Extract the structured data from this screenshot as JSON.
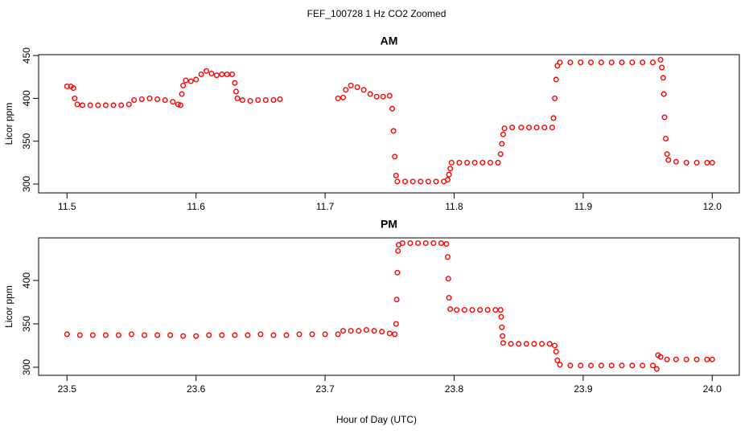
{
  "title": "FEF_100728  1 Hz CO2 Zoomed",
  "xlabel": "Hour of Day (UTC)",
  "chart_data": [
    {
      "type": "scatter",
      "title": "AM",
      "ylabel": "Licor ppm",
      "color": "#ff0000",
      "xlim": [
        11.478,
        12.021
      ],
      "ylim": [
        289.7,
        451
      ],
      "xticks": [
        11.5,
        11.6,
        11.7,
        11.8,
        11.9,
        {
          "value": 12,
          "label": "12.0"
        }
      ],
      "yticks": [
        300,
        350,
        400,
        450
      ],
      "x": [
        11.5,
        11.503,
        11.505,
        11.506,
        11.508,
        11.512,
        11.518,
        11.524,
        11.53,
        11.536,
        11.542,
        11.548,
        11.552,
        11.558,
        11.564,
        11.57,
        11.576,
        11.582,
        11.586,
        11.588,
        11.589,
        11.59,
        11.592,
        11.596,
        11.6,
        11.604,
        11.608,
        11.612,
        11.616,
        11.62,
        11.624,
        11.628,
        11.63,
        11.631,
        11.632,
        11.636,
        11.642,
        11.648,
        11.654,
        11.66,
        11.665,
        11.71,
        11.714,
        11.716,
        11.72,
        11.725,
        11.73,
        11.735,
        11.74,
        11.745,
        11.75,
        11.752,
        11.753,
        11.754,
        11.755,
        11.756,
        11.762,
        11.768,
        11.774,
        11.78,
        11.786,
        11.792,
        11.795,
        11.796,
        11.797,
        11.798,
        11.804,
        11.81,
        11.816,
        11.822,
        11.828,
        11.834,
        11.836,
        11.837,
        11.838,
        11.839,
        11.845,
        11.852,
        11.858,
        11.864,
        11.87,
        11.876,
        11.877,
        11.878,
        11.879,
        11.88,
        11.882,
        11.89,
        11.898,
        11.906,
        11.914,
        11.922,
        11.93,
        11.938,
        11.946,
        11.954,
        11.96,
        11.961,
        11.962,
        11.9625,
        11.963,
        11.964,
        11.965,
        11.966,
        11.972,
        11.98,
        11.988,
        11.996,
        12.0
      ],
      "values": [
        414,
        414,
        412,
        400,
        393,
        392,
        392,
        392,
        392,
        392,
        392,
        393,
        398,
        399,
        400,
        399,
        398,
        396,
        393,
        392,
        405,
        415,
        421,
        420,
        422,
        428,
        432,
        429,
        427,
        428,
        428,
        428,
        418,
        408,
        400,
        398,
        397,
        398,
        398,
        398,
        399,
        400,
        401,
        410,
        415,
        413,
        410,
        405,
        402,
        402,
        403,
        388,
        362,
        332,
        310,
        303,
        303,
        303,
        303,
        303,
        303,
        303,
        305,
        311,
        318,
        325,
        325,
        325,
        325,
        325,
        325,
        325,
        335,
        347,
        358,
        365,
        366,
        366,
        366,
        366,
        366,
        366,
        377,
        400,
        422,
        438,
        442,
        442,
        442,
        442,
        442,
        442,
        442,
        442,
        442,
        442,
        445,
        436,
        424,
        405,
        378,
        353,
        335,
        328,
        326,
        325,
        325,
        325,
        325
      ]
    },
    {
      "type": "scatter",
      "title": "PM",
      "ylabel": "Licor ppm",
      "color": "#ff0000",
      "xlim": [
        23.478,
        24.021
      ],
      "ylim": [
        290.7,
        449
      ],
      "xticks": [
        23.5,
        23.6,
        23.7,
        23.8,
        23.9,
        {
          "value": 24,
          "label": "24.0"
        }
      ],
      "yticks": [
        300,
        350,
        400
      ],
      "x": [
        23.5,
        23.51,
        23.52,
        23.53,
        23.54,
        23.55,
        23.56,
        23.57,
        23.58,
        23.59,
        23.6,
        23.61,
        23.62,
        23.63,
        23.64,
        23.65,
        23.66,
        23.67,
        23.68,
        23.69,
        23.7,
        23.71,
        23.714,
        23.72,
        23.726,
        23.732,
        23.738,
        23.744,
        23.75,
        23.754,
        23.755,
        23.7555,
        23.756,
        23.7565,
        23.757,
        23.76,
        23.766,
        23.772,
        23.778,
        23.784,
        23.79,
        23.794,
        23.795,
        23.7955,
        23.796,
        23.797,
        23.802,
        23.808,
        23.814,
        23.82,
        23.826,
        23.832,
        23.836,
        23.8365,
        23.837,
        23.8375,
        23.838,
        23.844,
        23.85,
        23.856,
        23.862,
        23.868,
        23.874,
        23.878,
        23.879,
        23.88,
        23.882,
        23.89,
        23.898,
        23.906,
        23.914,
        23.922,
        23.93,
        23.938,
        23.946,
        23.954,
        23.957,
        23.958,
        23.96,
        23.965,
        23.972,
        23.98,
        23.988,
        23.996,
        24.0
      ],
      "values": [
        338,
        337,
        337,
        337,
        337,
        338,
        337,
        337,
        337,
        336,
        336,
        337,
        337,
        337,
        337,
        338,
        337,
        337,
        338,
        338,
        338,
        338,
        342,
        342,
        342,
        343,
        342,
        341,
        339,
        338,
        350,
        378,
        409,
        434,
        441,
        443,
        443,
        443,
        443,
        443,
        443,
        442,
        427,
        402,
        380,
        367,
        366,
        366,
        366,
        366,
        366,
        366,
        366,
        358,
        346,
        336,
        328,
        327,
        327,
        327,
        327,
        327,
        327,
        325,
        318,
        308,
        303,
        302,
        302,
        302,
        302,
        302,
        302,
        302,
        302,
        302,
        298,
        314,
        312,
        309,
        309,
        309,
        309,
        309,
        309
      ]
    }
  ]
}
